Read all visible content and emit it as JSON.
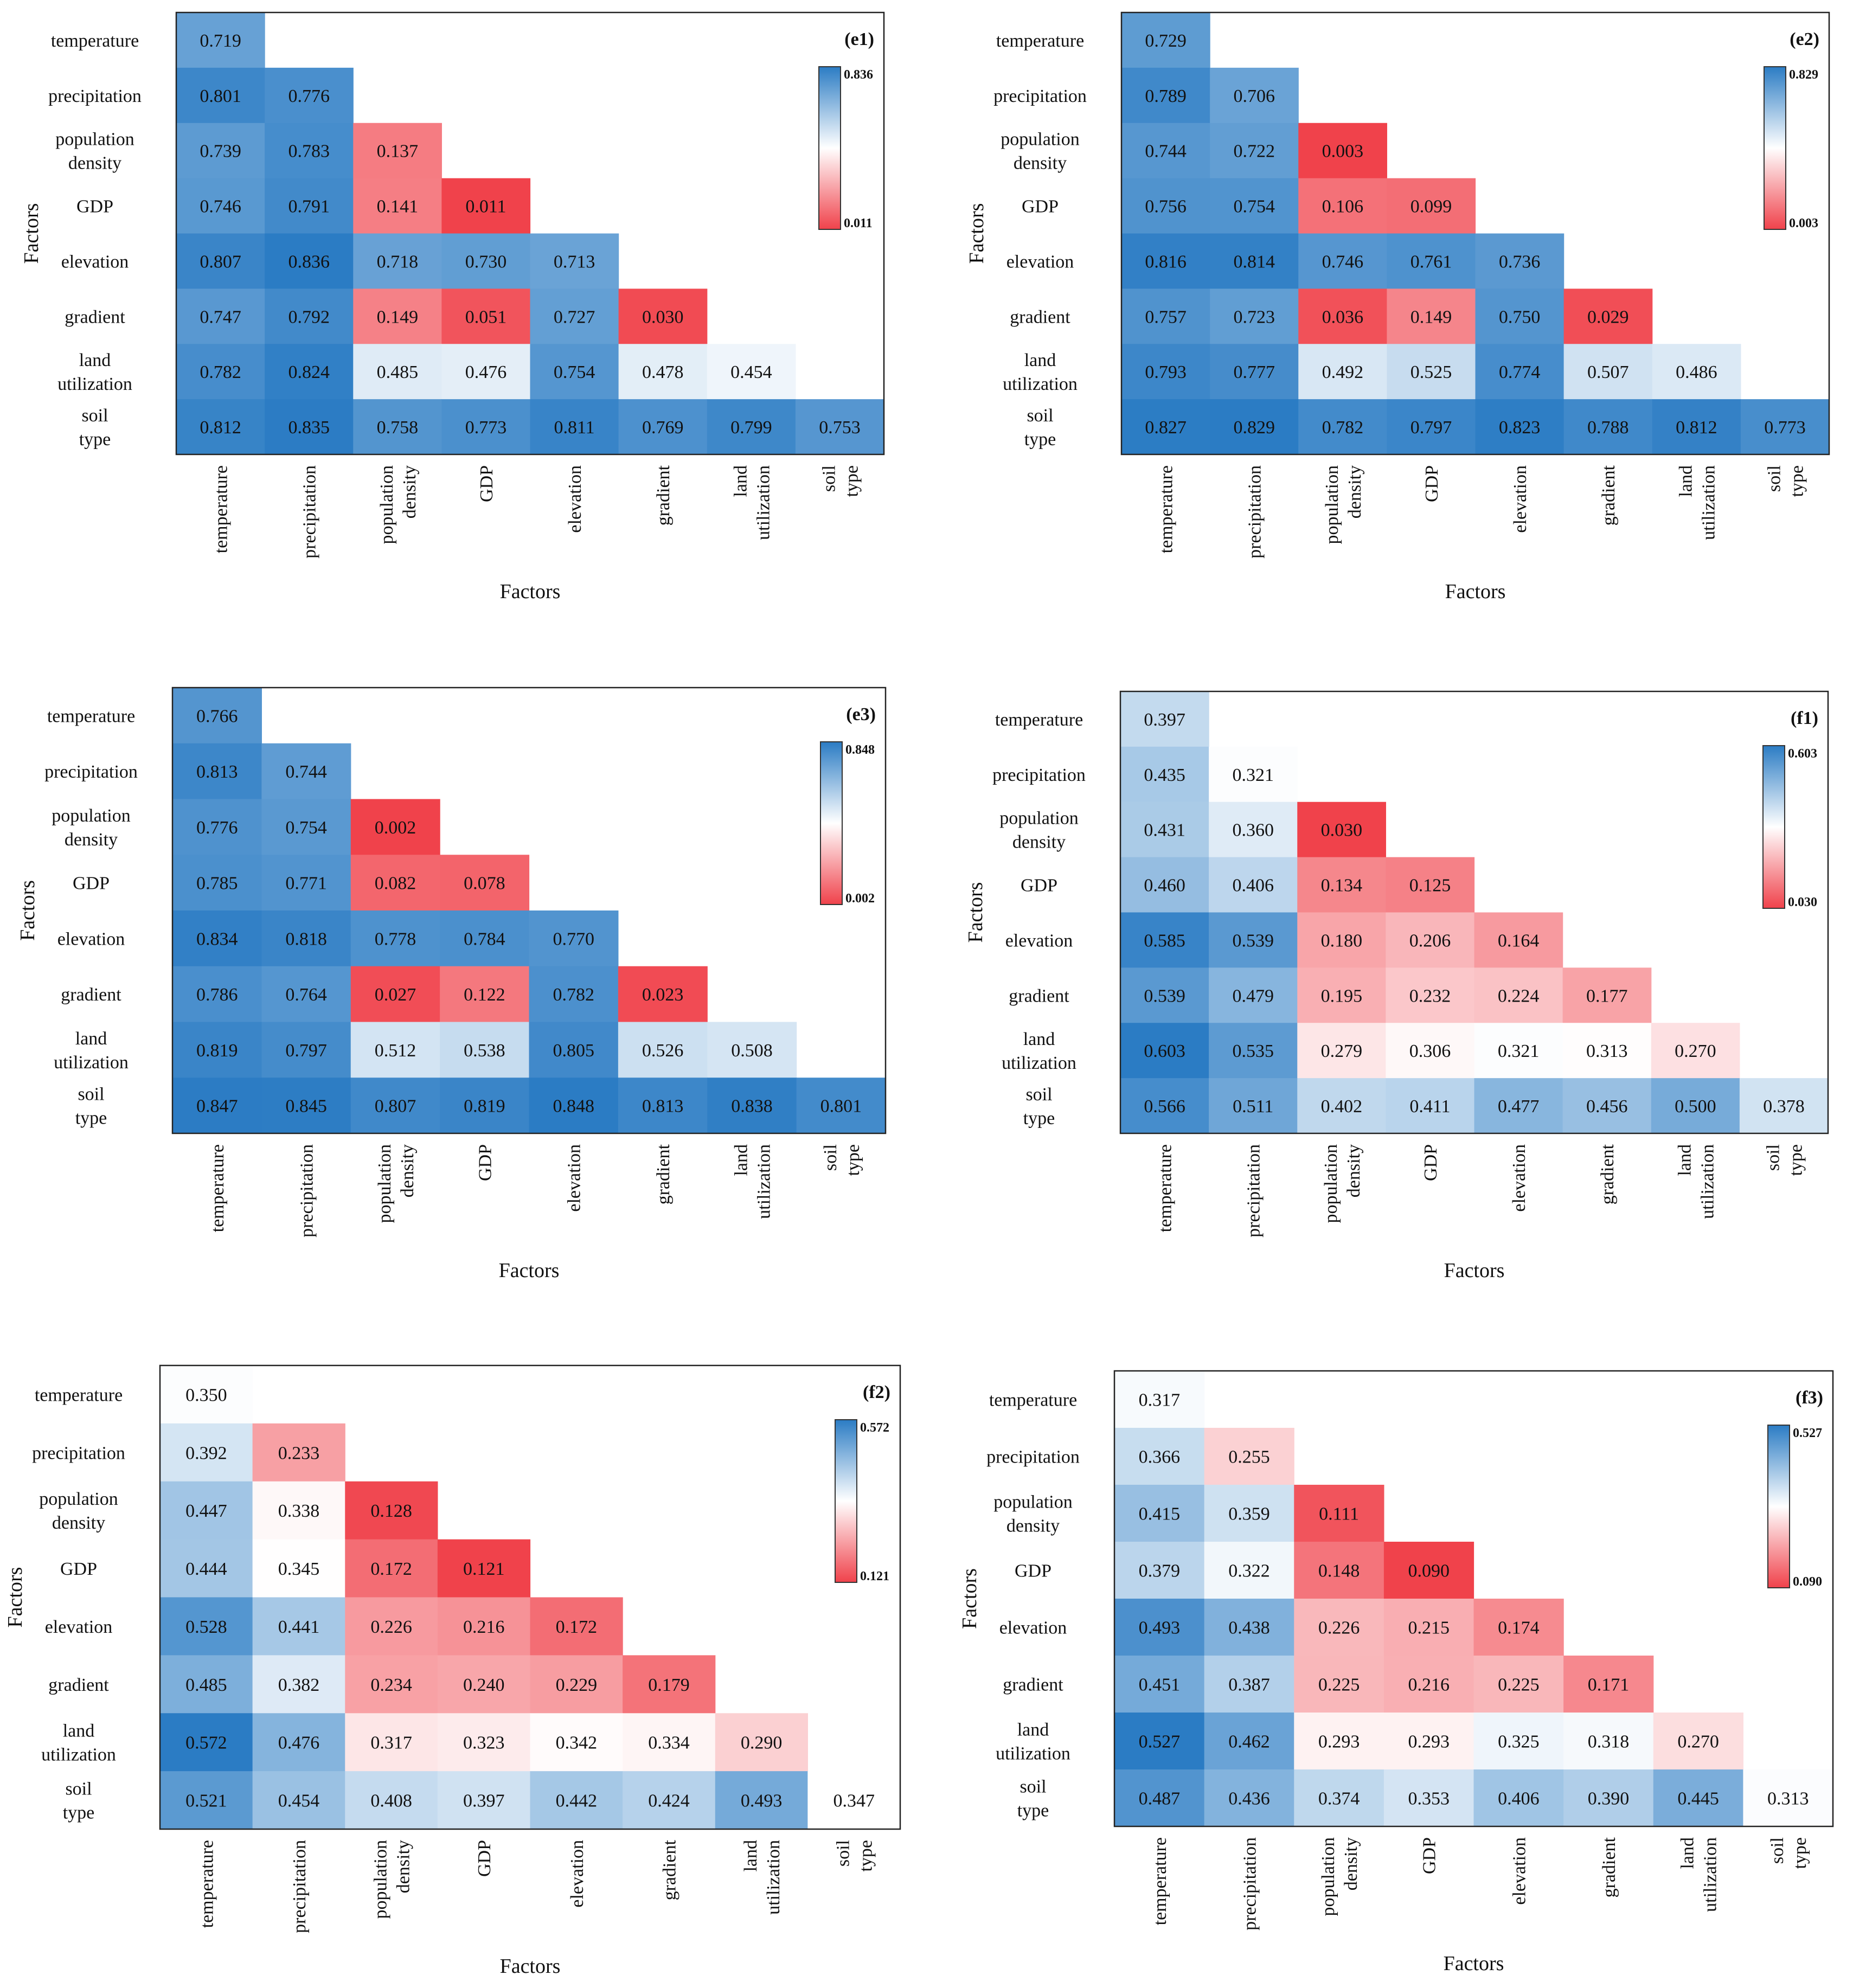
{
  "chart_data": [
    {
      "type": "heatmap",
      "panel_label": "(e1)",
      "xlabel": "Factors",
      "ylabel": "Factors",
      "factors": [
        "temperature",
        "precipitation",
        "population density",
        "GDP",
        "elevation",
        "gradient",
        "land utilization",
        "soil type"
      ],
      "values": [
        [
          0.719
        ],
        [
          0.801,
          0.776
        ],
        [
          0.739,
          0.783,
          0.137
        ],
        [
          0.746,
          0.791,
          0.141,
          0.011
        ],
        [
          0.807,
          0.836,
          0.718,
          0.73,
          0.713
        ],
        [
          0.747,
          0.792,
          0.149,
          0.051,
          0.727,
          0.03
        ],
        [
          0.782,
          0.824,
          0.485,
          0.476,
          0.754,
          0.478,
          0.454
        ],
        [
          0.812,
          0.835,
          0.758,
          0.773,
          0.811,
          0.769,
          0.799,
          0.753
        ]
      ],
      "colorbar": {
        "max_label": "0.836",
        "min_label": "0.011",
        "vmin": 0.011,
        "vmax": 0.836
      }
    },
    {
      "type": "heatmap",
      "panel_label": "(e2)",
      "xlabel": "Factors",
      "ylabel": "Factors",
      "factors": [
        "temperature",
        "precipitation",
        "population density",
        "GDP",
        "elevation",
        "gradient",
        "land utilization",
        "soil type"
      ],
      "values": [
        [
          0.729
        ],
        [
          0.789,
          0.706
        ],
        [
          0.744,
          0.722,
          0.003
        ],
        [
          0.756,
          0.754,
          0.106,
          0.099
        ],
        [
          0.816,
          0.814,
          0.746,
          0.761,
          0.736
        ],
        [
          0.757,
          0.723,
          0.036,
          0.149,
          0.75,
          0.029
        ],
        [
          0.793,
          0.777,
          0.492,
          0.525,
          0.774,
          0.507,
          0.486
        ],
        [
          0.827,
          0.829,
          0.782,
          0.797,
          0.823,
          0.788,
          0.812,
          0.773
        ]
      ],
      "colorbar": {
        "max_label": "0.829",
        "min_label": "0.003",
        "vmin": 0.003,
        "vmax": 0.829
      }
    },
    {
      "type": "heatmap",
      "panel_label": "(e3)",
      "xlabel": "Factors",
      "ylabel": "Factors",
      "factors": [
        "temperature",
        "precipitation",
        "population density",
        "GDP",
        "elevation",
        "gradient",
        "land utilization",
        "soil type"
      ],
      "values": [
        [
          0.766
        ],
        [
          0.813,
          0.744
        ],
        [
          0.776,
          0.754,
          0.002
        ],
        [
          0.785,
          0.771,
          0.082,
          0.078
        ],
        [
          0.834,
          0.818,
          0.778,
          0.784,
          0.77
        ],
        [
          0.786,
          0.764,
          0.027,
          0.122,
          0.782,
          0.023
        ],
        [
          0.819,
          0.797,
          0.512,
          0.538,
          0.805,
          0.526,
          0.508
        ],
        [
          0.847,
          0.845,
          0.807,
          0.819,
          0.848,
          0.813,
          0.838,
          0.801
        ]
      ],
      "colorbar": {
        "max_label": "0.848",
        "min_label": "0.002",
        "vmin": 0.002,
        "vmax": 0.848
      }
    },
    {
      "type": "heatmap",
      "panel_label": "(f1)",
      "xlabel": "Factors",
      "ylabel": "Factors",
      "factors": [
        "temperature",
        "precipitation",
        "population density",
        "GDP",
        "elevation",
        "gradient",
        "land utilization",
        "soil type"
      ],
      "values": [
        [
          0.397
        ],
        [
          0.435,
          0.321
        ],
        [
          0.431,
          0.36,
          0.03
        ],
        [
          0.46,
          0.406,
          0.134,
          0.125
        ],
        [
          0.585,
          0.539,
          0.18,
          0.206,
          0.164
        ],
        [
          0.539,
          0.479,
          0.195,
          0.232,
          0.224,
          0.177
        ],
        [
          0.603,
          0.535,
          0.279,
          0.306,
          0.321,
          0.313,
          0.27
        ],
        [
          0.566,
          0.511,
          0.402,
          0.411,
          0.477,
          0.456,
          0.5,
          0.378
        ]
      ],
      "colorbar": {
        "max_label": "0.603",
        "min_label": "0.030",
        "vmin": 0.03,
        "vmax": 0.603
      }
    },
    {
      "type": "heatmap",
      "panel_label": "(f2)",
      "xlabel": "Factors",
      "ylabel": "Factors",
      "factors": [
        "temperature",
        "precipitation",
        "population density",
        "GDP",
        "elevation",
        "gradient",
        "land utilization",
        "soil type"
      ],
      "values": [
        [
          0.35
        ],
        [
          0.392,
          0.233
        ],
        [
          0.447,
          0.338,
          0.128
        ],
        [
          0.444,
          0.345,
          0.172,
          0.121
        ],
        [
          0.528,
          0.441,
          0.226,
          0.216,
          0.172
        ],
        [
          0.485,
          0.382,
          0.234,
          0.24,
          0.229,
          0.179
        ],
        [
          0.572,
          0.476,
          0.317,
          0.323,
          0.342,
          0.334,
          0.29
        ],
        [
          0.521,
          0.454,
          0.408,
          0.397,
          0.442,
          0.424,
          0.493,
          0.347
        ]
      ],
      "colorbar": {
        "max_label": "0.572",
        "min_label": "0.121",
        "vmin": 0.121,
        "vmax": 0.572
      }
    },
    {
      "type": "heatmap",
      "panel_label": "(f3)",
      "xlabel": "Factors",
      "ylabel": "Factors",
      "factors": [
        "temperature",
        "precipitation",
        "population density",
        "GDP",
        "elevation",
        "gradient",
        "land utilization",
        "soil type"
      ],
      "values": [
        [
          0.317
        ],
        [
          0.366,
          0.255
        ],
        [
          0.415,
          0.359,
          0.111
        ],
        [
          0.379,
          0.322,
          0.148,
          0.09
        ],
        [
          0.493,
          0.438,
          0.226,
          0.215,
          0.174
        ],
        [
          0.451,
          0.387,
          0.225,
          0.216,
          0.225,
          0.171
        ],
        [
          0.527,
          0.462,
          0.293,
          0.293,
          0.325,
          0.318,
          0.27
        ],
        [
          0.487,
          0.436,
          0.374,
          0.353,
          0.406,
          0.39,
          0.445,
          0.313
        ]
      ],
      "colorbar": {
        "max_label": "0.527",
        "min_label": "0.090",
        "vmin": 0.09,
        "vmax": 0.527
      }
    }
  ],
  "colors": {
    "high": "#2b7cc4",
    "mid": "#ffffff",
    "low": "#f0424b"
  }
}
